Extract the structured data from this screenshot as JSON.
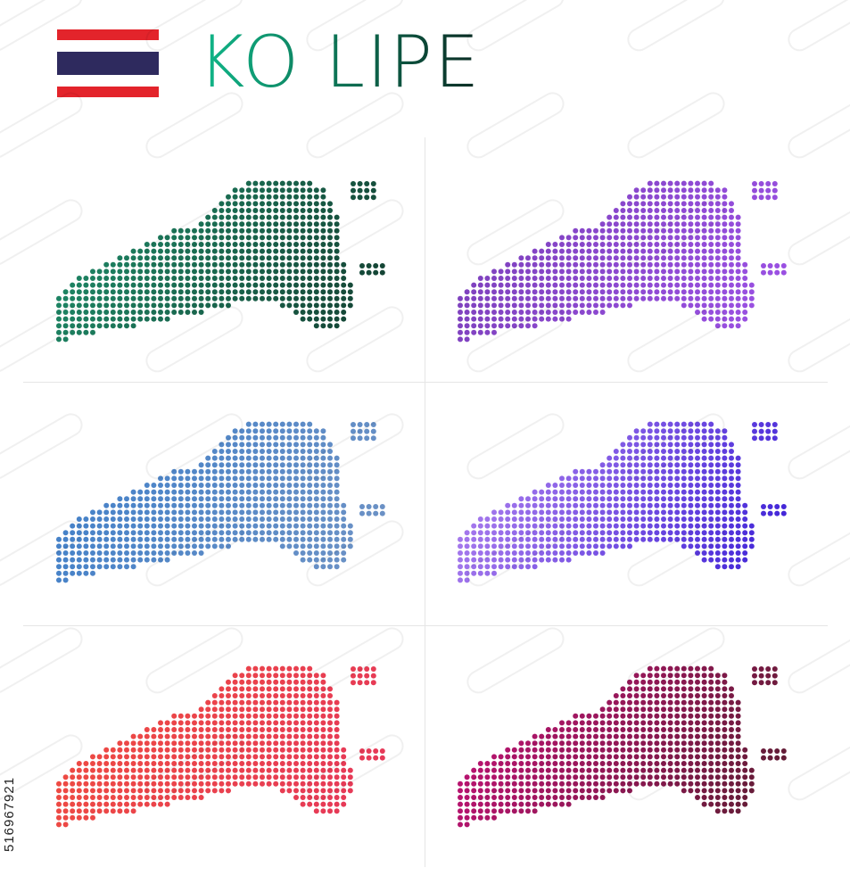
{
  "title": "KO LIPE",
  "title_colors": [
    "#10b88a",
    "#0a2a22"
  ],
  "flag": {
    "country": "Thailand",
    "stripes": [
      "#e3242b",
      "#ffffff",
      "#2e2a5e",
      "#ffffff",
      "#e3242b"
    ]
  },
  "maps": [
    {
      "id": "green",
      "colors": [
        "#1f8f6b",
        "#143f31"
      ]
    },
    {
      "id": "purple",
      "colors": [
        "#7a3fb8",
        "#9d52e6"
      ]
    },
    {
      "id": "blue",
      "colors": [
        "#3f7fc9",
        "#6f93c5"
      ]
    },
    {
      "id": "violet",
      "colors": [
        "#b687f0",
        "#3a1fd6"
      ]
    },
    {
      "id": "red",
      "colors": [
        "#ef4d3f",
        "#e5375a"
      ]
    },
    {
      "id": "magenta",
      "colors": [
        "#c7127a",
        "#5a1d30"
      ]
    }
  ],
  "stock_id": "516967921"
}
